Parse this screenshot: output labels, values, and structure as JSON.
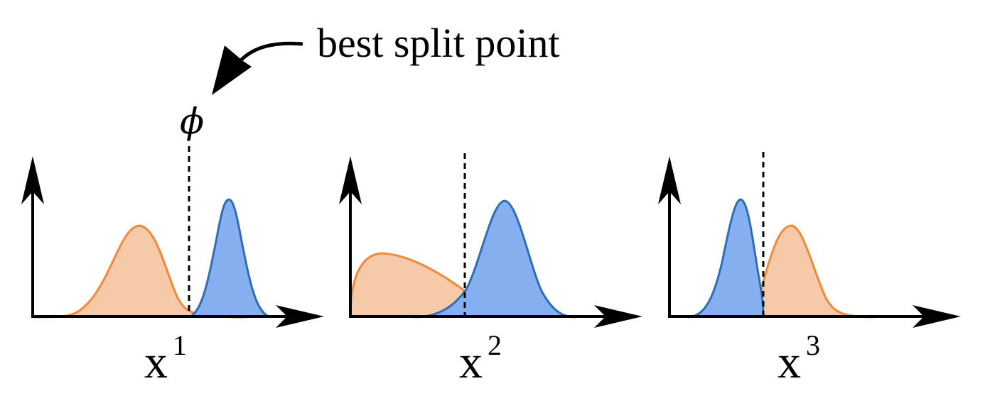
{
  "callout": {
    "text": "best split point"
  },
  "threshold_symbol": "ϕ",
  "panels": [
    {
      "base": "x",
      "sup": "1"
    },
    {
      "base": "x",
      "sup": "2"
    },
    {
      "base": "x",
      "sup": "3"
    }
  ],
  "colors": {
    "orange_stroke": "#f0883e",
    "orange_fill": "#f6c9a8",
    "blue_stroke": "#2f6eb5",
    "blue_fill": "#86aff0",
    "axis": "#000000"
  }
}
